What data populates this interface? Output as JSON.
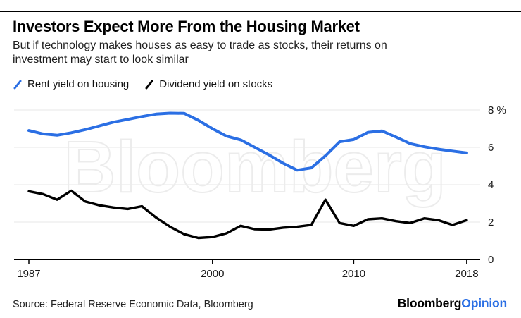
{
  "header": {
    "title": "Investors Expect More From the Housing Market",
    "subtitle_line1": "But if technology makes houses as easy to trade as stocks, their returns on",
    "subtitle_line2": "investment may start to look similar"
  },
  "legend": [
    {
      "label": "Rent yield on housing",
      "color": "#2b6fe4"
    },
    {
      "label": "Dividend yield on stocks",
      "color": "#000000"
    }
  ],
  "watermark": "Bloomberg",
  "footer": {
    "source": "Source: Federal Reserve Economic Data, Bloomberg",
    "brand_black": "Bloomberg",
    "brand_blue": "Opinion"
  },
  "colors": {
    "accent_blue": "#2b6fe4",
    "line_black": "#000000",
    "gridline": "#e7e7e7",
    "watermark_stroke": "#ececec",
    "axis": "#000000",
    "tick_label": "#1a1a1a"
  },
  "chart_data": {
    "type": "line",
    "x": [
      1987,
      1988,
      1989,
      1990,
      1991,
      1992,
      1993,
      1994,
      1995,
      1996,
      1997,
      1998,
      1999,
      2000,
      2001,
      2002,
      2003,
      2004,
      2005,
      2006,
      2007,
      2008,
      2009,
      2010,
      2011,
      2012,
      2013,
      2014,
      2015,
      2016,
      2017,
      2018
    ],
    "series": [
      {
        "name": "Rent yield on housing",
        "color": "#2b6fe4",
        "values": [
          6.9,
          6.72,
          6.65,
          6.78,
          6.95,
          7.15,
          7.35,
          7.5,
          7.65,
          7.78,
          7.83,
          7.82,
          7.45,
          7.0,
          6.6,
          6.4,
          6.0,
          5.6,
          5.15,
          4.78,
          4.9,
          5.55,
          6.3,
          6.42,
          6.8,
          6.88,
          6.55,
          6.2,
          6.03,
          5.9,
          5.8,
          5.7
        ]
      },
      {
        "name": "Dividend yield on stocks",
        "color": "#000000",
        "values": [
          3.65,
          3.5,
          3.2,
          3.68,
          3.1,
          2.9,
          2.78,
          2.7,
          2.85,
          2.25,
          1.75,
          1.35,
          1.15,
          1.2,
          1.4,
          1.8,
          1.62,
          1.6,
          1.7,
          1.75,
          1.85,
          3.2,
          1.95,
          1.8,
          2.15,
          2.2,
          2.05,
          1.95,
          2.2,
          2.1,
          1.85,
          2.1
        ]
      }
    ],
    "ylim": [
      0,
      8
    ],
    "y_ticks": [
      0,
      2,
      4,
      6,
      8
    ],
    "y_tick_labels": [
      "0",
      "2",
      "4",
      "6",
      "8 %"
    ],
    "x_ticks": [
      1987,
      2000,
      2010,
      2018
    ],
    "unit": "%",
    "grid": "horizontal",
    "y_axis_side": "right",
    "legend_position": "top-left"
  }
}
